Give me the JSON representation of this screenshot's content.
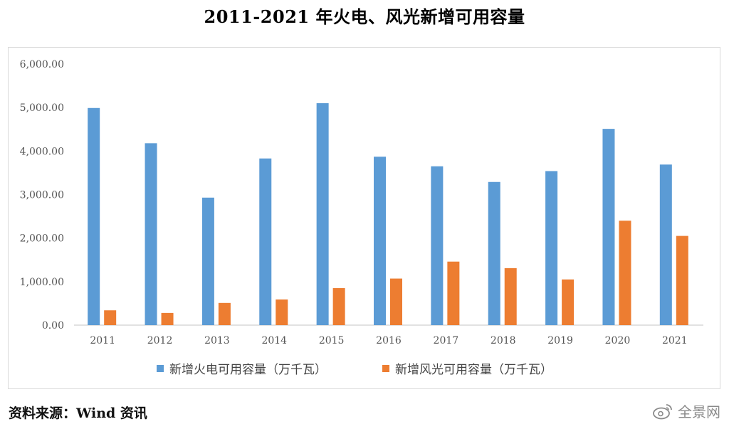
{
  "title": "2011-2021 年火电、风光新增可用容量",
  "source": "资料来源：Wind 资讯",
  "watermark": {
    "text": "全景网",
    "icon": "weibo-icon"
  },
  "colors": {
    "thermal": "#5b9bd5",
    "wind_solar": "#ed7d31",
    "axis": "#d9d9d9"
  },
  "chart_data": {
    "type": "bar",
    "title": "2011-2021 年火电、风光新增可用容量",
    "xlabel": "",
    "ylabel": "",
    "categories": [
      "2011",
      "2012",
      "2013",
      "2014",
      "2015",
      "2016",
      "2017",
      "2018",
      "2019",
      "2020",
      "2021"
    ],
    "ylim": [
      0,
      6000
    ],
    "yticks": [
      "0.00",
      "1,000.00",
      "2,000.00",
      "3,000.00",
      "4,000.00",
      "5,000.00",
      "6,000.00"
    ],
    "grid": false,
    "legend_position": "bottom",
    "series": [
      {
        "name": "新增火电可用容量（万千瓦）",
        "color": "#5b9bd5",
        "values": [
          4990,
          4180,
          2930,
          3830,
          5100,
          3870,
          3650,
          3290,
          3540,
          4510,
          3690
        ]
      },
      {
        "name": "新增风光可用容量（万千瓦）",
        "color": "#ed7d31",
        "values": [
          340,
          280,
          510,
          590,
          850,
          1070,
          1460,
          1310,
          1050,
          2400,
          2050
        ]
      }
    ]
  }
}
